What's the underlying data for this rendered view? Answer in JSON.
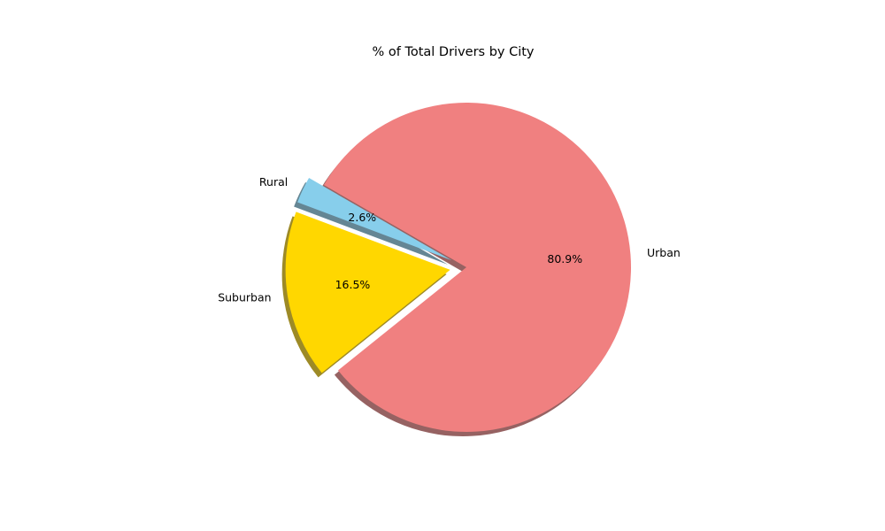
{
  "chart_data": {
    "type": "pie",
    "title": "% of Total Drivers by City",
    "slices": [
      {
        "label": "Rural",
        "value": 2.6,
        "pct_label": "2.6%",
        "color": "#87CEEB",
        "exploded": true
      },
      {
        "label": "Suburban",
        "value": 16.5,
        "pct_label": "16.5%",
        "color": "#FFD700",
        "exploded": true
      },
      {
        "label": "Urban",
        "value": 80.9,
        "pct_label": "80.9%",
        "color": "#F08080",
        "exploded": false
      }
    ],
    "shadow": true,
    "start_angle_deg": 150,
    "legend": "none"
  }
}
